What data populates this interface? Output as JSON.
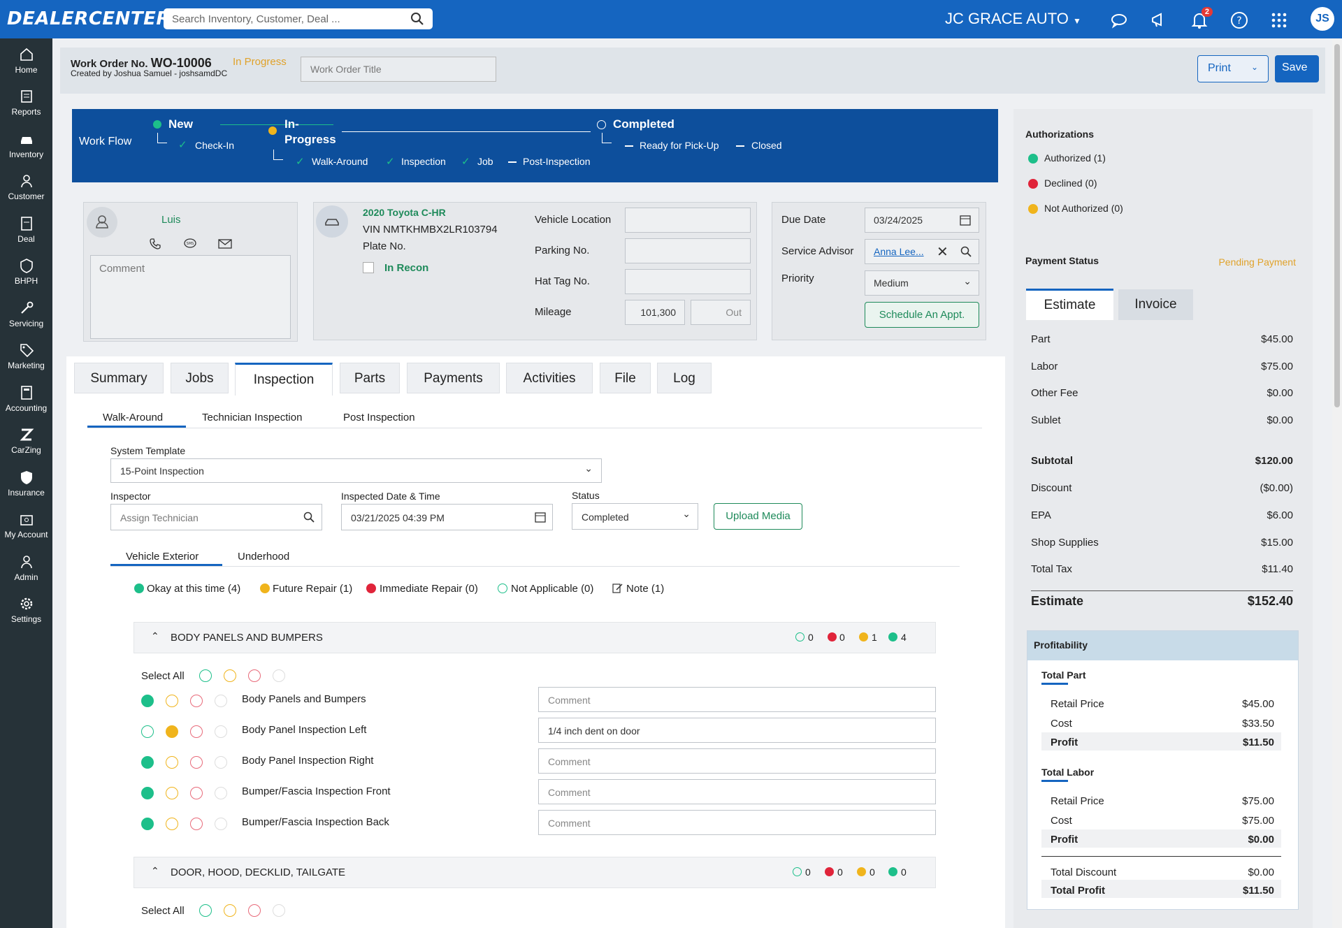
{
  "app": {
    "logo": "DEALERCENTER",
    "search_placeholder": "Search Inventory, Customer, Deal ...",
    "dealer": "JC GRACE AUTO",
    "notif_count": "2",
    "user_initials": "JS"
  },
  "sidebar": [
    {
      "label": "Home",
      "icon": "home-icon"
    },
    {
      "label": "Reports",
      "icon": "reports-icon"
    },
    {
      "label": "Inventory",
      "icon": "car-icon"
    },
    {
      "label": "Customer",
      "icon": "person-icon"
    },
    {
      "label": "Deal",
      "icon": "deal-icon"
    },
    {
      "label": "BHPH",
      "icon": "bhph-icon"
    },
    {
      "label": "Servicing",
      "icon": "wrench-icon"
    },
    {
      "label": "Marketing",
      "icon": "tag-icon"
    },
    {
      "label": "Accounting",
      "icon": "calculator-icon"
    },
    {
      "label": "CarZing",
      "icon": "carzing-icon"
    },
    {
      "label": "Insurance",
      "icon": "shield-icon"
    },
    {
      "label": "My Account",
      "icon": "account-icon"
    },
    {
      "label": "Admin",
      "icon": "admin-icon"
    },
    {
      "label": "Settings",
      "icon": "gear-icon"
    }
  ],
  "work_order": {
    "label": "Work Order No.",
    "number": "WO-10006",
    "status": "In Progress",
    "created_by": "Created by Joshua Samuel - joshsamdDC",
    "title_placeholder": "Work Order Title",
    "print": "Print",
    "save": "Save"
  },
  "workflow": {
    "label": "Work Flow",
    "new": "New",
    "check_in": "Check-In",
    "in_progress_1": "In-",
    "in_progress_2": "Progress",
    "walk_around": "Walk-Around",
    "inspection": "Inspection",
    "job": "Job",
    "post_inspection": "Post-Inspection",
    "completed": "Completed",
    "ready": "Ready for Pick-Up",
    "closed": "Closed"
  },
  "customer": {
    "name": "Luis",
    "comment_placeholder": "Comment"
  },
  "vehicle": {
    "name": "2020 Toyota C-HR",
    "vin": "VIN NMTKHMBX2LR103794",
    "plate": "Plate No.",
    "in_recon": "In Recon",
    "location_label": "Vehicle Location",
    "parking_label": "Parking No.",
    "hattag_label": "Hat Tag No.",
    "mileage_label": "Mileage",
    "mileage": "101,300",
    "out_placeholder": "Out"
  },
  "schedule": {
    "due_label": "Due Date",
    "due": "03/24/2025",
    "advisor_label": "Service Advisor",
    "advisor": "Anna Lee...",
    "priority_label": "Priority",
    "priority": "Medium",
    "schedule_btn": "Schedule An Appt."
  },
  "tabs": [
    "Summary",
    "Jobs",
    "Inspection",
    "Parts",
    "Payments",
    "Activities",
    "File",
    "Log"
  ],
  "subtabs": [
    "Walk-Around",
    "Technician Inspection",
    "Post Inspection"
  ],
  "inspection": {
    "template_label": "System Template",
    "template": "15-Point Inspection",
    "inspector_label": "Inspector",
    "inspector_placeholder": "Assign Technician",
    "date_label": "Inspected Date & Time",
    "date": "03/21/2025 04:39 PM",
    "status_label": "Status",
    "status": "Completed",
    "upload": "Upload Media",
    "areas": [
      "Vehicle Exterior",
      "Underhood"
    ],
    "legend": {
      "ok": "Okay at this time (4)",
      "future": "Future Repair (1)",
      "immediate": "Immediate Repair (0)",
      "na": "Not Applicable (0)",
      "note": "Note (1)"
    },
    "sections": [
      {
        "title": "BODY PANELS AND BUMPERS",
        "counts": [
          "0",
          "0",
          "1",
          "4"
        ]
      },
      {
        "title": "DOOR, HOOD, DECKLID, TAILGATE",
        "counts": [
          "0",
          "0",
          "0",
          "0"
        ]
      }
    ],
    "select_all": "Select All",
    "items": [
      {
        "name": "Body Panels and Bumpers",
        "comment": "",
        "state": "ok"
      },
      {
        "name": "Body Panel Inspection Left",
        "comment": "1/4 inch dent on door",
        "state": "future"
      },
      {
        "name": "Body Panel Inspection Right",
        "comment": "",
        "state": "ok"
      },
      {
        "name": "Bumper/Fascia Inspection Front",
        "comment": "",
        "state": "ok"
      },
      {
        "name": "Bumper/Fascia Inspection Back",
        "comment": "",
        "state": "ok"
      }
    ],
    "comment_placeholder": "Comment"
  },
  "authorizations": {
    "title": "Authorizations",
    "authorized": "Authorized (1)",
    "declined": "Declined (0)",
    "not_authorized": "Not Authorized (0)"
  },
  "payment": {
    "title": "Payment Status",
    "status": "Pending Payment",
    "tab_estimate": "Estimate",
    "tab_invoice": "Invoice",
    "rows": [
      {
        "l": "Part",
        "v": "$45.00"
      },
      {
        "l": "Labor",
        "v": "$75.00"
      },
      {
        "l": "Other Fee",
        "v": "$0.00"
      },
      {
        "l": "Sublet",
        "v": "$0.00"
      },
      {
        "l": "Subtotal",
        "v": "$120.00"
      },
      {
        "l": "Discount",
        "v": "($0.00)"
      },
      {
        "l": "EPA",
        "v": "$6.00"
      },
      {
        "l": "Shop Supplies",
        "v": "$15.00"
      },
      {
        "l": "Total Tax",
        "v": "$11.40"
      }
    ],
    "estimate_label": "Estimate",
    "estimate": "$152.40"
  },
  "profitability": {
    "title": "Profitability",
    "part_title": "Total Part",
    "labor_title": "Total Labor",
    "part": [
      {
        "l": "Retail Price",
        "v": "$45.00"
      },
      {
        "l": "Cost",
        "v": "$33.50"
      },
      {
        "l": "Profit",
        "v": "$11.50"
      }
    ],
    "labor": [
      {
        "l": "Retail Price",
        "v": "$75.00"
      },
      {
        "l": "Cost",
        "v": "$75.00"
      },
      {
        "l": "Profit",
        "v": "$0.00"
      }
    ],
    "total_discount_label": "Total Discount",
    "total_discount": "$0.00",
    "total_profit_label": "Total Profit",
    "total_profit": "$11.50"
  },
  "colors": {
    "brand": "#1565c0",
    "ok": "#1dbf8a",
    "future": "#f0b41c",
    "immediate": "#e0243a",
    "na": "#1dbf8a"
  }
}
